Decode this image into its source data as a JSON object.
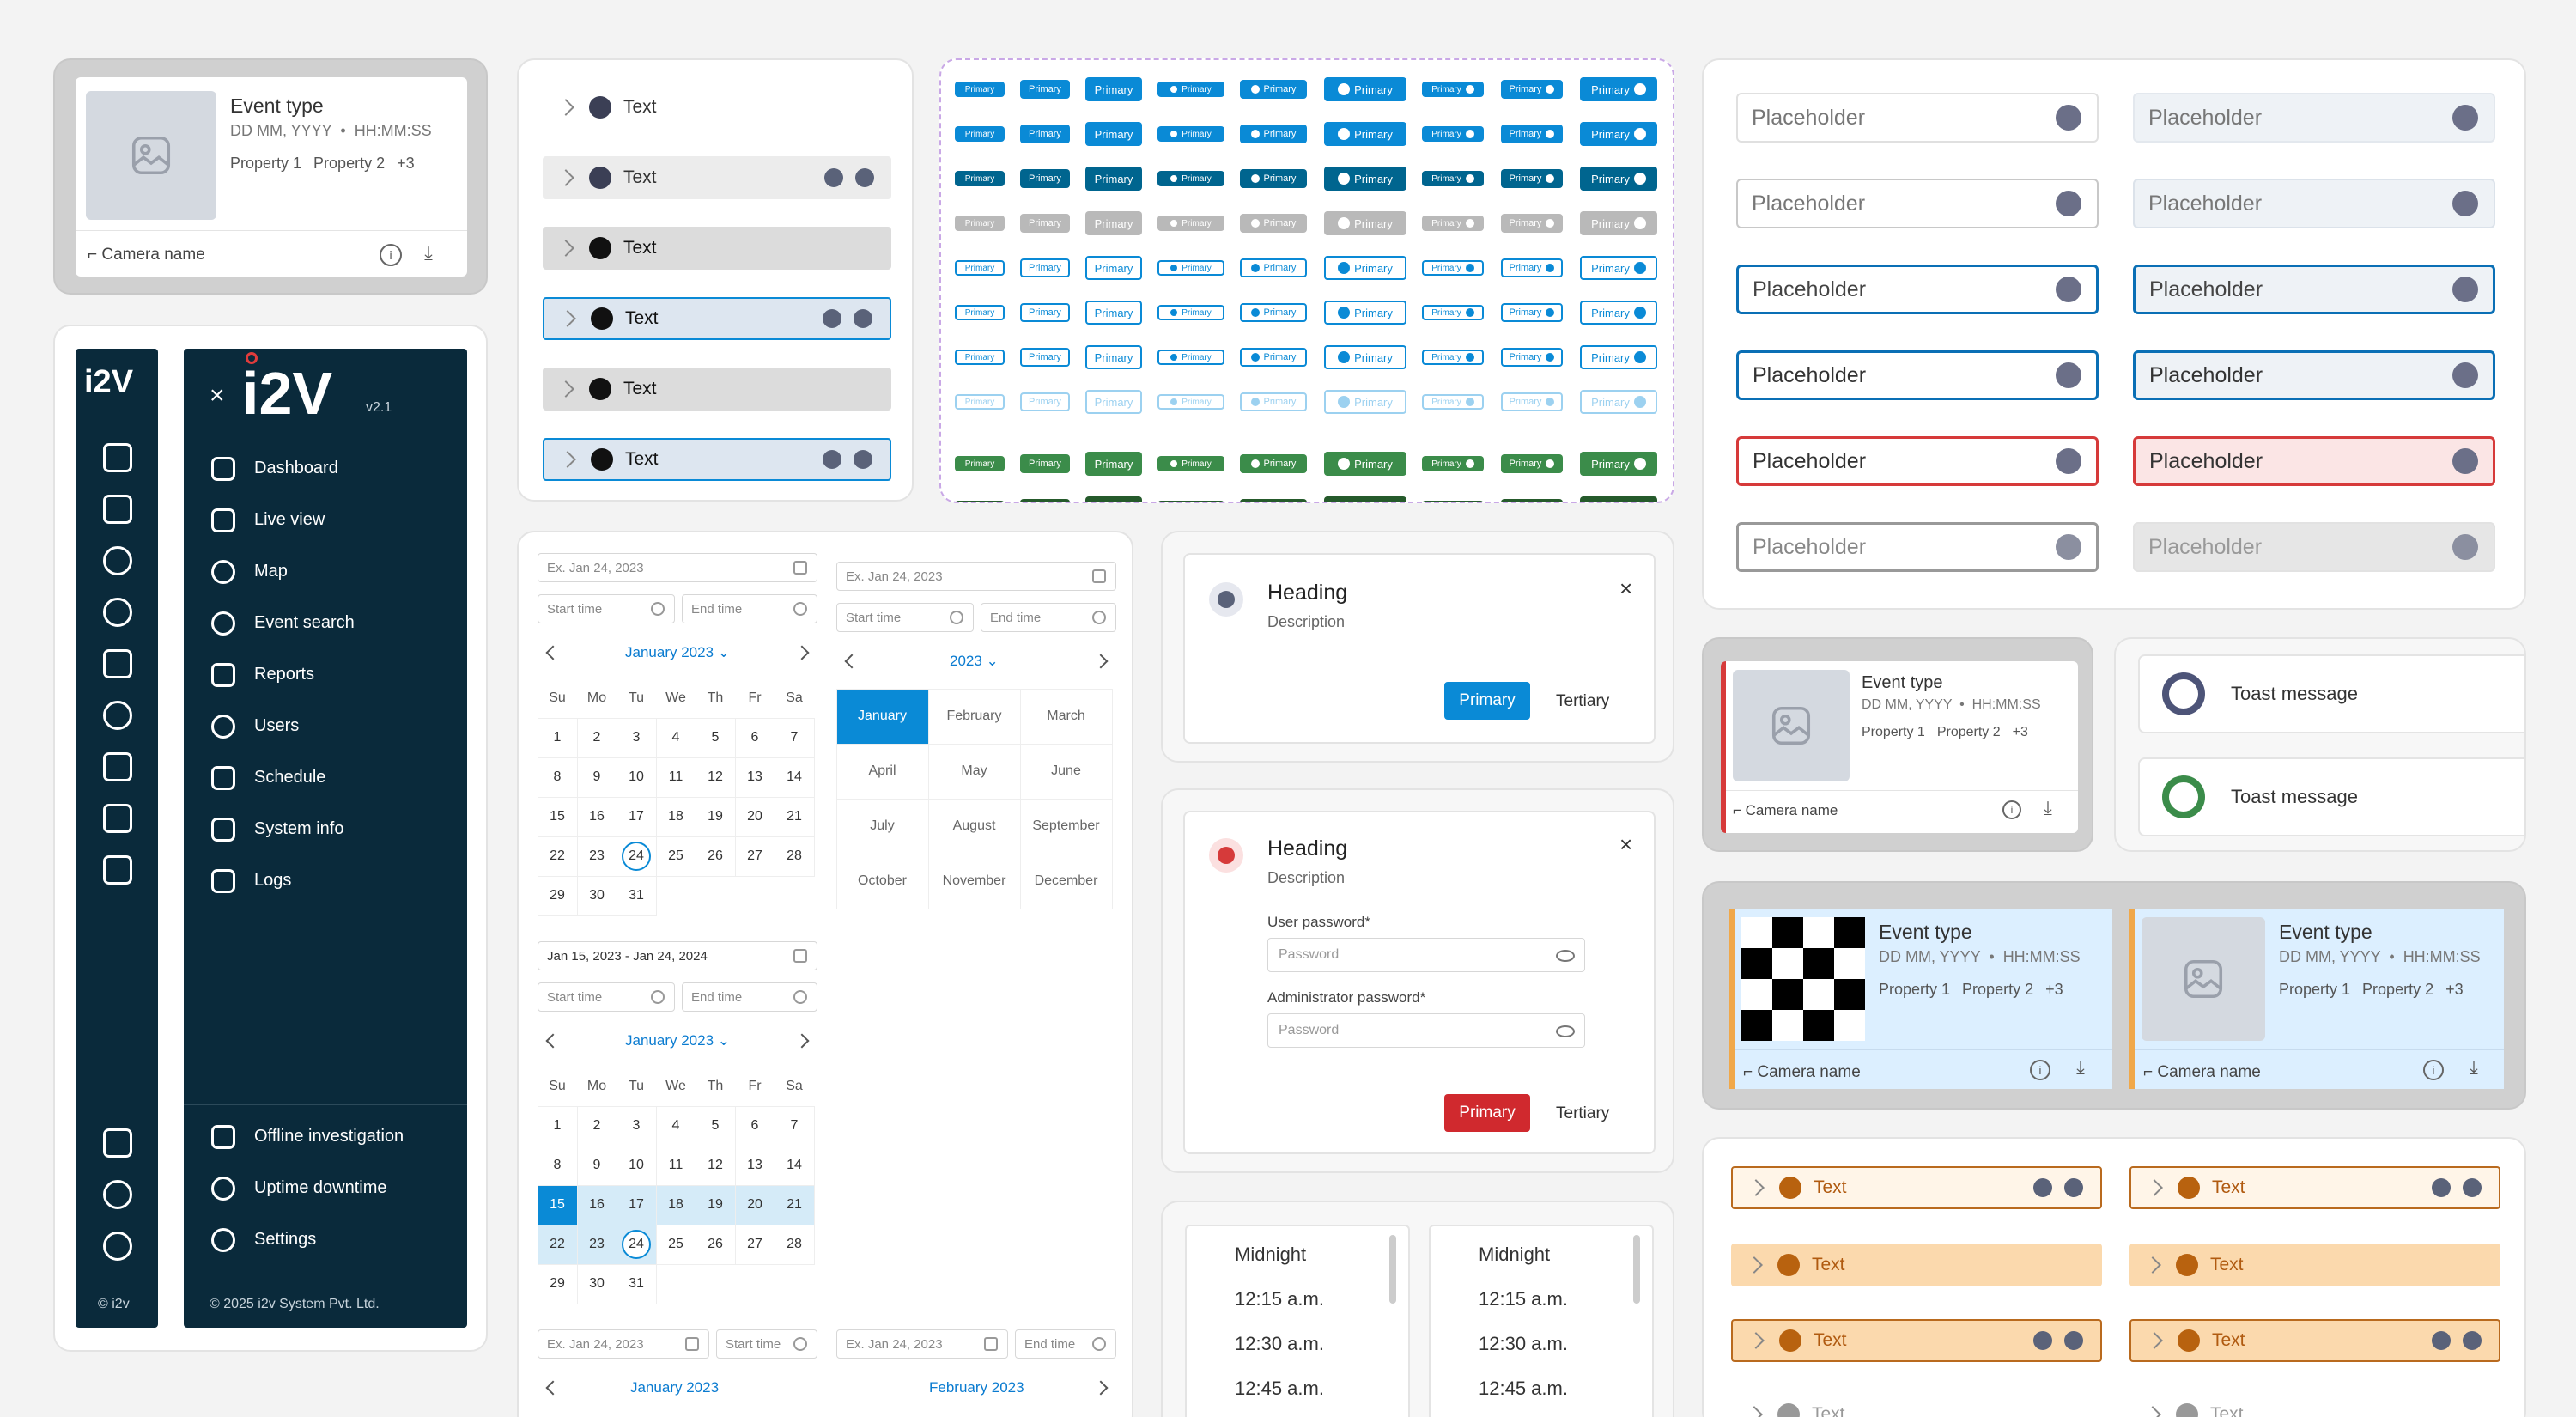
{
  "event_card": {
    "title": "Event type",
    "date": "DD MM, YYYY",
    "time": "HH:MM:SS",
    "props": [
      "Property 1",
      "Property 2",
      "+3"
    ],
    "camera": "Camera name"
  },
  "tree": {
    "label": "Text"
  },
  "buttons": {
    "label": "Primary",
    "row_colors": [
      "#0a8ad6",
      "#0a8ad6",
      "#00658f",
      "#b9b9b9",
      "#0a8ad6",
      "#0a8ad6",
      "#0a8ad6",
      "#9cd1f0",
      "#3b8c4a",
      "#255a2b"
    ],
    "row_styles": [
      "solid",
      "solid",
      "solid",
      "solid",
      "outline",
      "outline",
      "outline",
      "outline",
      "solid",
      "solid"
    ]
  },
  "inputs": {
    "placeholder": "Placeholder"
  },
  "sidebar": {
    "logo_small": "i2V",
    "logo": "i2V",
    "version": "v2.1",
    "close": "×",
    "items": [
      "Dashboard",
      "Live view",
      "Map",
      "Event search",
      "Reports",
      "Users",
      "Schedule",
      "System info",
      "Logs"
    ],
    "bottom_items": [
      "Offline investigation",
      "Uptime downtime",
      "Settings"
    ],
    "footer_small": "© i2v",
    "footer": "© 2025 i2v System Pvt. Ltd."
  },
  "calendar": {
    "date_placeholder": "Ex. Jan 24, 2023",
    "start_time": "Start time",
    "end_time": "End time",
    "month_title": "January 2023",
    "year_title": "2023",
    "range_text": "Jan 15, 2023 - Jan 24, 2024",
    "weekdays": [
      "Su",
      "Mo",
      "Tu",
      "We",
      "Th",
      "Fr",
      "Sa"
    ],
    "months": [
      "January",
      "February",
      "March",
      "April",
      "May",
      "June",
      "July",
      "August",
      "September",
      "October",
      "November",
      "December"
    ],
    "next_month_title": "February 2023"
  },
  "dialog1": {
    "heading": "Heading",
    "description": "Description",
    "primary": "Primary",
    "tertiary": "Tertiary",
    "close": "×"
  },
  "dialog2": {
    "heading": "Heading",
    "description": "Description",
    "user_label": "User password*",
    "admin_label": "Administrator password*",
    "placeholder": "Password",
    "primary": "Primary",
    "tertiary": "Tertiary",
    "close": "×"
  },
  "toasts": {
    "message": "Toast message",
    "colors": [
      "#4d5478",
      "#3b8c4a"
    ]
  },
  "time_list": {
    "items": [
      "Midnight",
      "12:15 a.m.",
      "12:30 a.m.",
      "12:45 a.m."
    ]
  }
}
